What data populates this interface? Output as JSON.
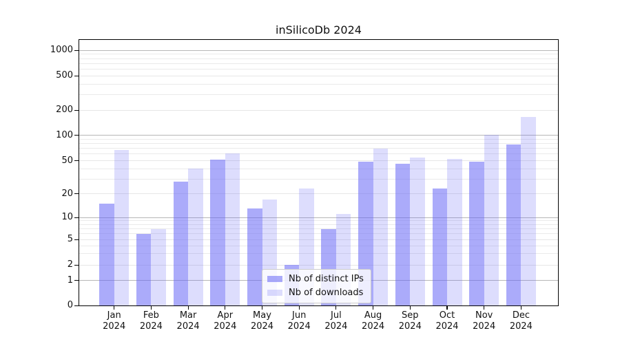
{
  "title": "inSilicoDb 2024",
  "legend": {
    "items": [
      {
        "label": "Nb of distinct IPs",
        "color": "rgba(102,102,245,0.55)"
      },
      {
        "label": "Nb of downloads",
        "color": "rgba(102,102,245,0.22)"
      }
    ]
  },
  "y_axis": {
    "ticks": [
      {
        "value": 1000,
        "label": "1000"
      },
      {
        "value": 500,
        "label": "500"
      },
      {
        "value": 200,
        "label": "200"
      },
      {
        "value": 100,
        "label": "100"
      },
      {
        "value": 50,
        "label": "50"
      },
      {
        "value": 20,
        "label": "20"
      },
      {
        "value": 10,
        "label": "10"
      },
      {
        "value": 5,
        "label": "5"
      },
      {
        "value": 2,
        "label": "2"
      },
      {
        "value": 1,
        "label": "1"
      },
      {
        "value": 0,
        "label": "0"
      }
    ]
  },
  "x_axis": {
    "months": [
      "Jan",
      "Feb",
      "Mar",
      "Apr",
      "May",
      "Jun",
      "Jul",
      "Aug",
      "Sep",
      "Oct",
      "Nov",
      "Dec"
    ],
    "year": "2024"
  },
  "chart_data": {
    "type": "bar",
    "title": "inSilicoDb 2024",
    "categories": [
      "Jan 2024",
      "Feb 2024",
      "Mar 2024",
      "Apr 2024",
      "May 2024",
      "Jun 2024",
      "Jul 2024",
      "Aug 2024",
      "Sep 2024",
      "Oct 2024",
      "Nov 2024",
      "Dec 2024"
    ],
    "series": [
      {
        "name": "Nb of distinct IPs",
        "color": "rgba(102,102,245,0.55)",
        "values": [
          15,
          6,
          28,
          51,
          13,
          2,
          7,
          49,
          46,
          23,
          49,
          78
        ]
      },
      {
        "name": "Nb of downloads",
        "color": "rgba(102,102,245,0.22)",
        "values": [
          67,
          7,
          40,
          61,
          17,
          23,
          11,
          70,
          54,
          52,
          102,
          165
        ]
      }
    ],
    "xlabel": "",
    "ylabel": "",
    "yscale": "symlog",
    "yticks": [
      0,
      1,
      2,
      5,
      10,
      20,
      50,
      100,
      200,
      500,
      1000
    ],
    "ylim": [
      0,
      1330
    ],
    "grid": true,
    "legend_position": "lower center"
  }
}
